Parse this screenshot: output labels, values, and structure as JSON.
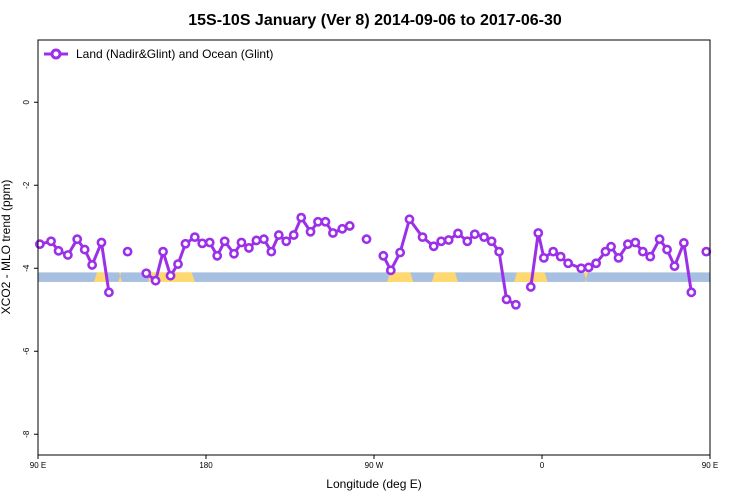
{
  "chart_data": {
    "type": "line",
    "title": "15S-10S January (Ver 8)   2014-09-06 to 2017-06-30",
    "xlabel": "Longitude (deg E)",
    "ylabel": "XCO2 - MLO trend (ppm)",
    "xlim": [
      90,
      450
    ],
    "ylim": [
      -8.5,
      1.5
    ],
    "x_ticks": [
      {
        "value": 90,
        "label": "90 E"
      },
      {
        "value": 180,
        "label": "180"
      },
      {
        "value": 270,
        "label": "90 W"
      },
      {
        "value": 360,
        "label": "0"
      },
      {
        "value": 450,
        "label": "90 E"
      }
    ],
    "y_ticks": [
      {
        "value": 0,
        "label": "0"
      },
      {
        "value": -2,
        "label": "-2"
      },
      {
        "value": -4,
        "label": "-4"
      },
      {
        "value": -6,
        "label": "-6"
      },
      {
        "value": -8,
        "label": "-8"
      }
    ],
    "legend": {
      "placement": "top-left"
    },
    "colors": {
      "series": "#9b30e8",
      "ocean_band": "#a7bfe0",
      "land_band": "#ffd86f"
    },
    "surface_band": {
      "y_range": [
        -4.33,
        -4.1
      ],
      "land_segments": [
        [
          120,
          128
        ],
        [
          133,
          135
        ],
        [
          149,
          174
        ],
        [
          277,
          283
        ],
        [
          279,
          291
        ],
        [
          284,
          291
        ],
        [
          301,
          315
        ],
        [
          345,
          363
        ],
        [
          383,
          384
        ],
        [
          475,
          480
        ]
      ]
    },
    "series": [
      {
        "name": "Land (Nadir&Glint) and Ocean (Glint)",
        "x": [
          91,
          97,
          101,
          106,
          111,
          115,
          119,
          124,
          128,
          132,
          138,
          144,
          148,
          153,
          157,
          161,
          165,
          169,
          174,
          178,
          182,
          186,
          190,
          195,
          199,
          203,
          207,
          211,
          215,
          219,
          223,
          227,
          231,
          236,
          240,
          244,
          248,
          253,
          257,
          262,
          266,
          271,
          275,
          279,
          284,
          289,
          296,
          302,
          306,
          310,
          315,
          320,
          324,
          329,
          333,
          337,
          341,
          346,
          350,
          354,
          358,
          361,
          366,
          370,
          374,
          381,
          385,
          389,
          394,
          397,
          401,
          406,
          410,
          414,
          418,
          423,
          427,
          431,
          436,
          440,
          444,
          448
        ],
        "y": [
          -3.42,
          -3.35,
          -3.58,
          -3.68,
          -3.3,
          -3.55,
          -3.92,
          -3.38,
          -4.58,
          null,
          -3.6,
          null,
          -4.12,
          -4.3,
          -3.6,
          -4.18,
          -3.9,
          -3.41,
          -3.25,
          -3.4,
          -3.38,
          -3.7,
          -3.35,
          -3.65,
          -3.38,
          -3.51,
          -3.33,
          -3.3,
          -3.6,
          -3.2,
          -3.35,
          -3.2,
          -2.78,
          -3.12,
          -2.88,
          -2.88,
          -3.15,
          -3.05,
          -2.98,
          null,
          -3.3,
          null,
          -3.7,
          -4.05,
          -3.62,
          -2.82,
          -3.25,
          -3.47,
          -3.35,
          -3.32,
          -3.16,
          -3.35,
          -3.18,
          -3.25,
          -3.35,
          -3.6,
          -4.75,
          -4.88,
          null,
          -4.45,
          -3.15,
          -3.75,
          -3.6,
          -3.72,
          -3.88,
          -4.0,
          -3.98,
          -3.88,
          -3.6,
          -3.48,
          -3.75,
          -3.42,
          -3.38,
          -3.6,
          -3.72,
          -3.3,
          -3.55,
          -3.95,
          -3.39,
          -4.58,
          null,
          -3.6
        ]
      }
    ]
  }
}
